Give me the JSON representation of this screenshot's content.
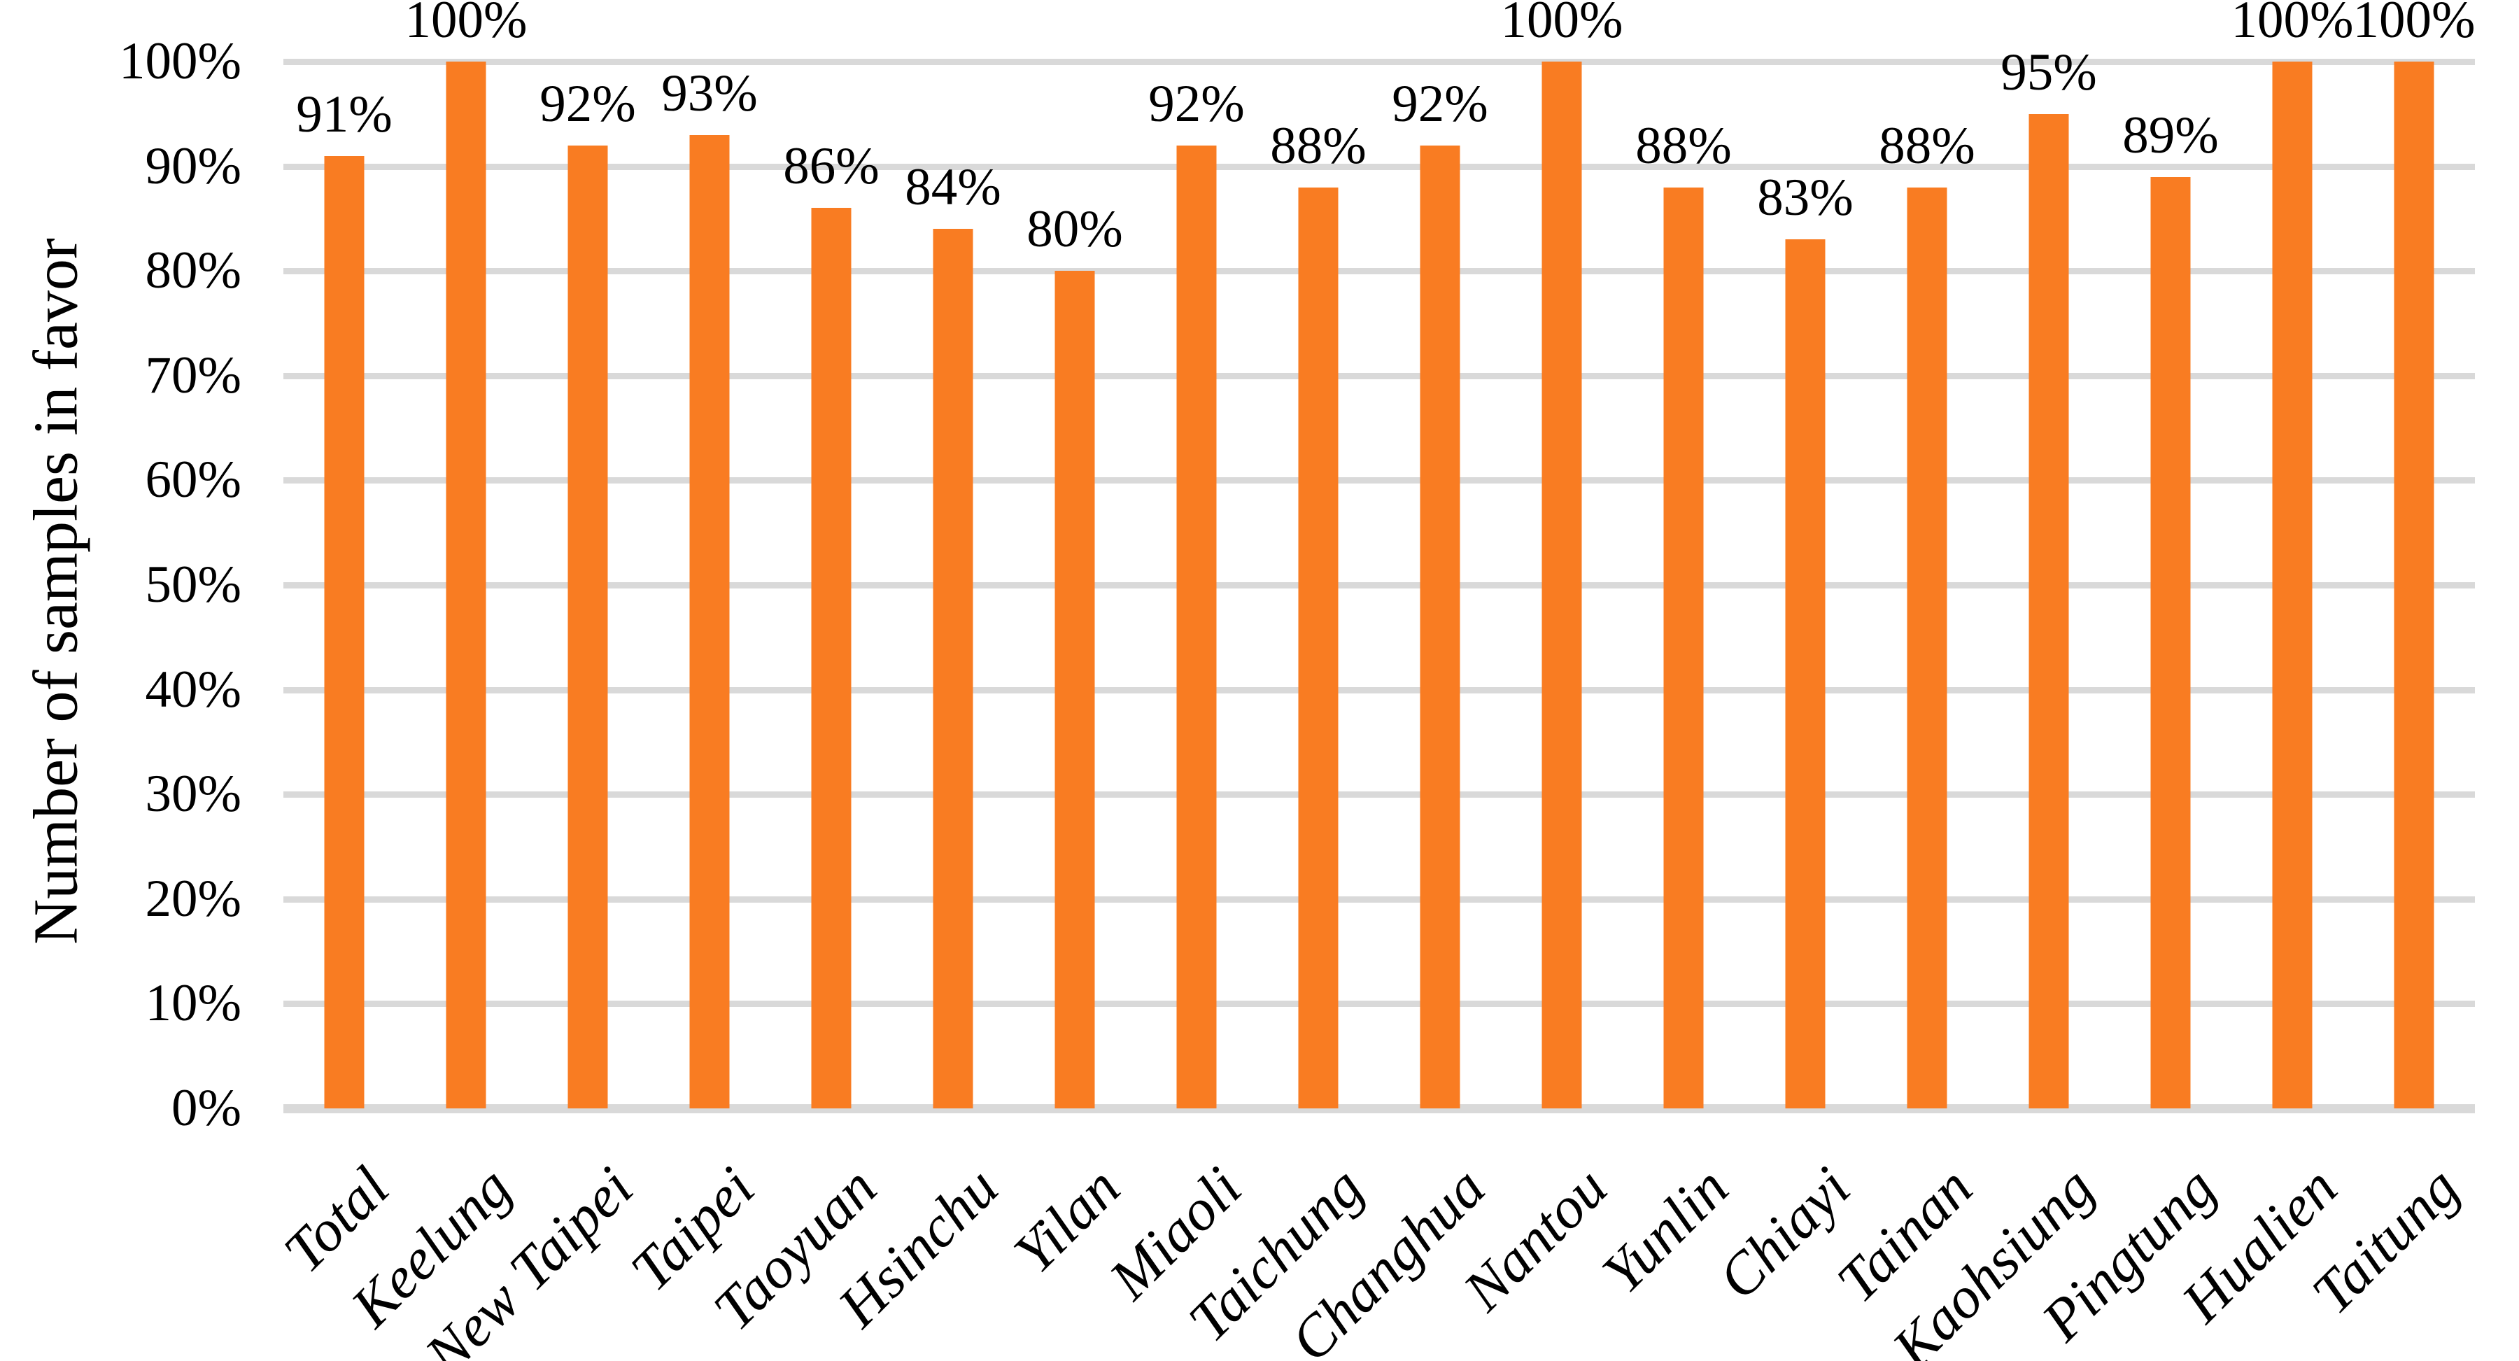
{
  "chart_data": {
    "type": "bar",
    "title": "",
    "xlabel": "",
    "ylabel": "Number of samples in favor",
    "categories": [
      "Total",
      "Keelung",
      "New Taipei",
      "Taipei",
      "Taoyuan",
      "Hsinchu",
      "Yilan",
      "Miaoli",
      "Taichung",
      "Changhua",
      "Nantou",
      "Yunlin",
      "Chiayi",
      "Tainan",
      "Kaohsiung",
      "Pingtung",
      "Hualien",
      "Taitung"
    ],
    "values": [
      91,
      100,
      92,
      93,
      86,
      84,
      80,
      92,
      88,
      92,
      100,
      88,
      83,
      88,
      95,
      89,
      100,
      100
    ],
    "data_labels": [
      "91%",
      "100%",
      "92%",
      "93%",
      "86%",
      "84%",
      "80%",
      "92%",
      "88%",
      "92%",
      "100%",
      "88%",
      "83%",
      "88%",
      "95%",
      "89%",
      "100%",
      "100%"
    ],
    "y_ticks": [
      "0%",
      "10%",
      "20%",
      "30%",
      "40%",
      "50%",
      "60%",
      "70%",
      "80%",
      "90%",
      "100%"
    ],
    "ylim": [
      0,
      100
    ],
    "grid": "horizontal",
    "legend": "none",
    "bar_color": "#F97C22",
    "gridline_color": "#D9D9D9",
    "text_color": "#000000",
    "background_color": "#FFFFFF"
  }
}
